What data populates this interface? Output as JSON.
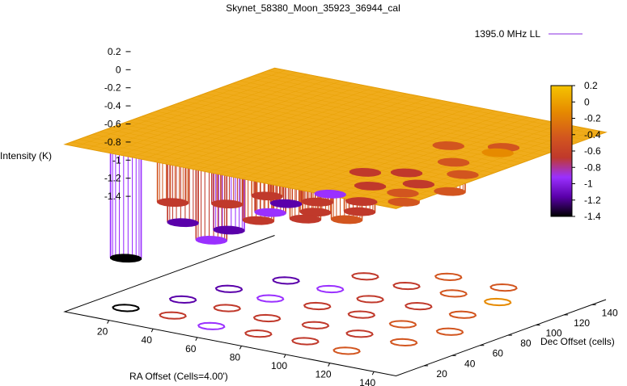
{
  "chart_data": {
    "type": "surface3d",
    "title": "Skynet_58380_Moon_35923_36944_cal",
    "xlabel": "RA Offset (Cells=4.00')",
    "ylabel": "Dec Offset (cells)",
    "zlabel": "Intensity (K)",
    "x_ticks": [
      20,
      40,
      60,
      80,
      100,
      120,
      140
    ],
    "y_ticks": [
      20,
      40,
      60,
      80,
      100,
      120,
      140
    ],
    "z_ticks": [
      0.2,
      0,
      -0.2,
      -0.4,
      -0.6,
      -0.8,
      -1,
      -1.2,
      -1.4
    ],
    "colorbar_ticks": [
      0.2,
      0,
      -0.2,
      -0.4,
      -0.6,
      -0.8,
      -1,
      -1.2,
      -1.4
    ],
    "xlim": [
      0,
      150
    ],
    "ylim": [
      0,
      150
    ],
    "zlim": [
      -1.4,
      0.2
    ],
    "colorbar_range": [
      -1.4,
      0.2
    ],
    "legend": {
      "label": "1395.0 MHz LL",
      "color": "#8a2be2",
      "placement": "top-right"
    },
    "palette": [
      "#000000",
      "#5a00aa",
      "#9a30ff",
      "#c0392b",
      "#d2551f",
      "#e68a00",
      "#f5c400"
    ],
    "surface_level": 0,
    "depressions": [
      {
        "x": 15,
        "y": 20,
        "depth": -1.3
      },
      {
        "x": 35,
        "y": 22,
        "depth": -0.6
      },
      {
        "x": 55,
        "y": 18,
        "depth": -0.9
      },
      {
        "x": 75,
        "y": 20,
        "depth": -0.6
      },
      {
        "x": 95,
        "y": 22,
        "depth": -0.5
      },
      {
        "x": 115,
        "y": 20,
        "depth": -0.4
      },
      {
        "x": 25,
        "y": 45,
        "depth": -1.0
      },
      {
        "x": 45,
        "y": 45,
        "depth": -0.7
      },
      {
        "x": 65,
        "y": 42,
        "depth": -0.5
      },
      {
        "x": 85,
        "y": 45,
        "depth": -0.6
      },
      {
        "x": 105,
        "y": 45,
        "depth": -0.5
      },
      {
        "x": 125,
        "y": 45,
        "depth": -0.3
      },
      {
        "x": 30,
        "y": 70,
        "depth": -1.2
      },
      {
        "x": 50,
        "y": 68,
        "depth": -0.9
      },
      {
        "x": 70,
        "y": 70,
        "depth": -0.7
      },
      {
        "x": 90,
        "y": 70,
        "depth": -0.6
      },
      {
        "x": 110,
        "y": 68,
        "depth": -0.4
      },
      {
        "x": 130,
        "y": 70,
        "depth": -0.3
      },
      {
        "x": 40,
        "y": 95,
        "depth": -1.0
      },
      {
        "x": 60,
        "y": 95,
        "depth": -0.8
      },
      {
        "x": 80,
        "y": 92,
        "depth": -0.6
      },
      {
        "x": 100,
        "y": 95,
        "depth": -0.5
      },
      {
        "x": 120,
        "y": 95,
        "depth": -0.3
      },
      {
        "x": 60,
        "y": 120,
        "depth": -0.7
      },
      {
        "x": 80,
        "y": 118,
        "depth": -0.6
      },
      {
        "x": 100,
        "y": 120,
        "depth": -0.4
      },
      {
        "x": 120,
        "y": 120,
        "depth": -0.2
      },
      {
        "x": 85,
        "y": 140,
        "depth": -0.4
      },
      {
        "x": 110,
        "y": 140,
        "depth": -0.3
      }
    ]
  }
}
